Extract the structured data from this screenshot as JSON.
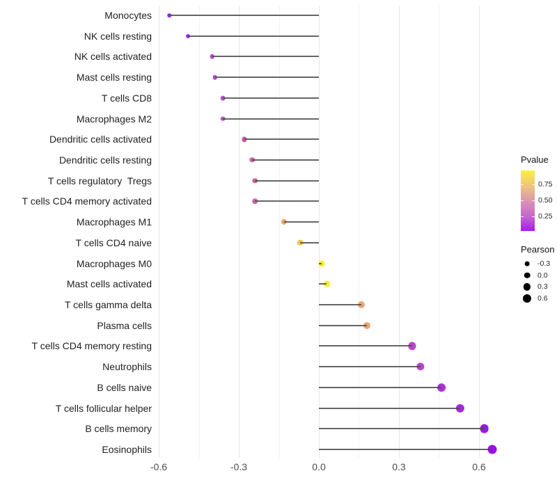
{
  "figure": {
    "background": "#ffffff",
    "stem_color": "#4a4a4a",
    "grid_major_color": "#e6e6e6",
    "grid_minor_color": "#f2f2f2"
  },
  "chart_data": {
    "type": "scatter",
    "subtype": "lollipop",
    "orientation": "horizontal",
    "title": "",
    "xlabel": "",
    "ylabel": "",
    "xlim": [
      -0.62,
      0.72
    ],
    "baseline_value": 0,
    "grid": {
      "major": [
        -0.6,
        -0.3,
        0,
        0.3,
        0.6
      ],
      "minor": [
        -0.45,
        -0.15,
        0.15,
        0.45
      ]
    },
    "x_ticks": [
      {
        "label": "-0.6",
        "value": -0.6
      },
      {
        "label": "-0.3",
        "value": -0.3
      },
      {
        "label": "0.0",
        "value": 0.0
      },
      {
        "label": "0.3",
        "value": 0.3
      },
      {
        "label": "0.6",
        "value": 0.6
      }
    ],
    "points": [
      {
        "label": "Monocytes",
        "pearson": -0.56,
        "color": "#9c2be0"
      },
      {
        "label": "NK cells resting",
        "pearson": -0.49,
        "color": "#9d2cda"
      },
      {
        "label": "NK cells activated",
        "pearson": -0.4,
        "color": "#b24ad4"
      },
      {
        "label": "Mast cells resting",
        "pearson": -0.39,
        "color": "#b24ad4"
      },
      {
        "label": "T cells CD8",
        "pearson": -0.36,
        "color": "#b851ce"
      },
      {
        "label": "Macrophages M2",
        "pearson": -0.36,
        "color": "#ba53cc"
      },
      {
        "label": "Dendritic cells activated",
        "pearson": -0.28,
        "color": "#c05da9"
      },
      {
        "label": "Dendritic cells resting",
        "pearson": -0.25,
        "color": "#ca699e"
      },
      {
        "label": "T cells regulatory  Tregs",
        "pearson": -0.24,
        "color": "#ca699e"
      },
      {
        "label": "T cells CD4 memory activated",
        "pearson": -0.24,
        "color": "#ca699e"
      },
      {
        "label": "Macrophages M1",
        "pearson": -0.13,
        "color": "#eda55f"
      },
      {
        "label": "T cells CD4 naive",
        "pearson": -0.07,
        "color": "#eec74e"
      },
      {
        "label": "Macrophages M0",
        "pearson": 0.01,
        "color": "#f7f02b"
      },
      {
        "label": "Mast cells activated",
        "pearson": 0.03,
        "color": "#f5ee3a"
      },
      {
        "label": "T cells gamma delta",
        "pearson": 0.16,
        "color": "#eba477"
      },
      {
        "label": "Plasma cells",
        "pearson": 0.18,
        "color": "#eba477"
      },
      {
        "label": "T cells CD4 memory resting",
        "pearson": 0.35,
        "color": "#bc49c9"
      },
      {
        "label": "Neutrophils",
        "pearson": 0.38,
        "color": "#b847cf"
      },
      {
        "label": "B cells naive",
        "pearson": 0.46,
        "color": "#ac31d6"
      },
      {
        "label": "T cells follicular helper",
        "pearson": 0.53,
        "color": "#a528dc"
      },
      {
        "label": "B cells memory",
        "pearson": 0.62,
        "color": "#9c18e2"
      },
      {
        "label": "Eosinophils",
        "pearson": 0.65,
        "color": "#9a10e4"
      }
    ],
    "legends": {
      "pvalue": {
        "title": "Pvalue",
        "tick_labels": [
          "0.75",
          "0.50",
          "0.25"
        ],
        "gradient_top_color": "#f8f046",
        "gradient_mid_color": "#dc95b2",
        "gradient_bottom_color": "#a81af0"
      },
      "pearson": {
        "title": "Pearson",
        "entries": [
          {
            "label": "-0.3",
            "value": -0.3
          },
          {
            "label": "0.0",
            "value": 0.0
          },
          {
            "label": "0.3",
            "value": 0.3
          },
          {
            "label": "0.6",
            "value": 0.6
          }
        ]
      }
    }
  }
}
